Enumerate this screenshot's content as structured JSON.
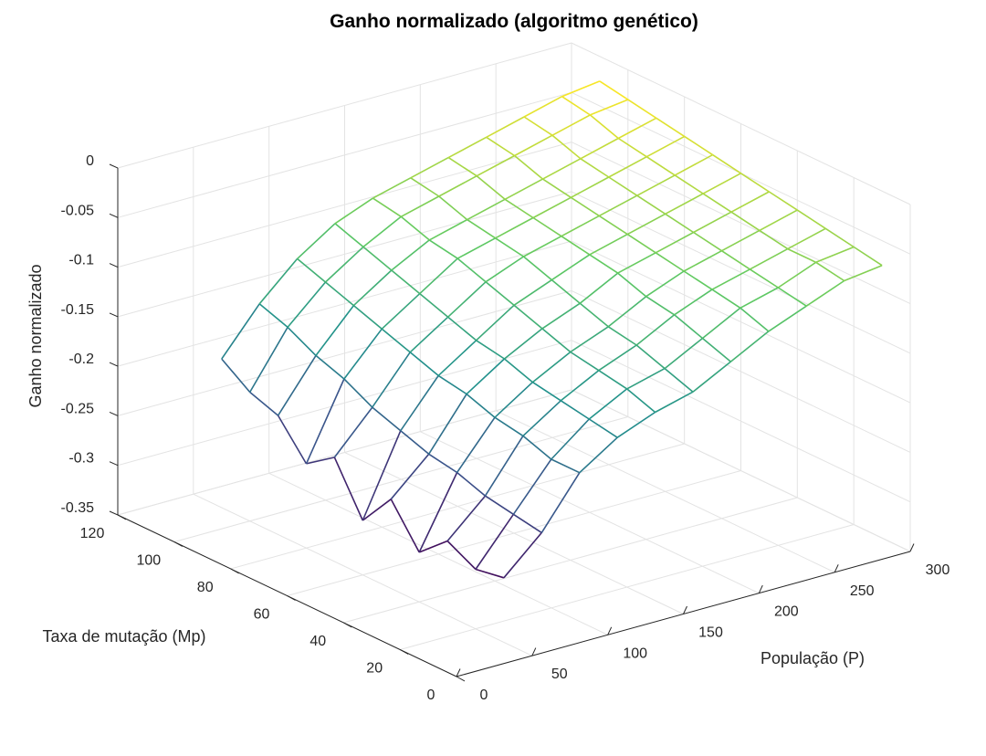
{
  "chart_data": {
    "type": "surface-mesh",
    "title": "Ganho normalizado (algoritmo genético)",
    "xlabel": "População (P)",
    "ylabel": "Taxa de mutação (Mp)",
    "zlabel": "Ganho normalizado",
    "xlim": [
      0,
      300
    ],
    "ylim": [
      0,
      120
    ],
    "zlim": [
      -0.35,
      0
    ],
    "xticks": [
      0,
      50,
      100,
      150,
      200,
      250,
      300
    ],
    "yticks": [
      0,
      20,
      40,
      60,
      80,
      100,
      120
    ],
    "zticks": [
      0,
      -0.05,
      -0.1,
      -0.15,
      -0.2,
      -0.25,
      -0.3,
      -0.35
    ],
    "xtick_labels": [
      "0",
      "50",
      "100",
      "150",
      "200",
      "250",
      "300"
    ],
    "ytick_labels": [
      "0",
      "20",
      "40",
      "60",
      "80",
      "100",
      "120"
    ],
    "ztick_labels": [
      "0",
      "-0.05",
      "-0.1",
      "-0.15",
      "-0.2",
      "-0.25",
      "-0.3",
      "-0.35"
    ],
    "grid": true,
    "colormap": [
      "#440154",
      "#3b528b",
      "#21918c",
      "#5ec962",
      "#fde725"
    ],
    "x": [
      50,
      75,
      100,
      125,
      150,
      175,
      200,
      225,
      250,
      275,
      300
    ],
    "y": [
      10,
      20,
      30,
      40,
      50,
      60,
      70,
      80,
      90,
      100,
      110
    ],
    "z": [
      [
        -0.285,
        -0.25,
        -0.2,
        -0.175,
        -0.16,
        -0.15,
        -0.13,
        -0.11,
        -0.095,
        -0.08,
        -0.075
      ],
      [
        -0.29,
        -0.245,
        -0.2,
        -0.17,
        -0.15,
        -0.14,
        -0.12,
        -0.1,
        -0.09,
        -0.075,
        -0.07
      ],
      [
        -0.275,
        -0.24,
        -0.19,
        -0.165,
        -0.145,
        -0.13,
        -0.11,
        -0.095,
        -0.085,
        -0.075,
        -0.065
      ],
      [
        -0.3,
        -0.23,
        -0.185,
        -0.16,
        -0.14,
        -0.125,
        -0.105,
        -0.09,
        -0.08,
        -0.07,
        -0.06
      ],
      [
        -0.26,
        -0.225,
        -0.175,
        -0.15,
        -0.13,
        -0.115,
        -0.095,
        -0.085,
        -0.075,
        -0.065,
        -0.055
      ],
      [
        -0.295,
        -0.215,
        -0.17,
        -0.145,
        -0.12,
        -0.105,
        -0.09,
        -0.08,
        -0.07,
        -0.06,
        -0.05
      ],
      [
        -0.245,
        -0.205,
        -0.16,
        -0.135,
        -0.11,
        -0.095,
        -0.085,
        -0.075,
        -0.065,
        -0.055,
        -0.045
      ],
      [
        -0.265,
        -0.19,
        -0.15,
        -0.125,
        -0.1,
        -0.09,
        -0.08,
        -0.07,
        -0.06,
        -0.05,
        -0.04
      ],
      [
        -0.23,
        -0.18,
        -0.14,
        -0.115,
        -0.095,
        -0.085,
        -0.075,
        -0.065,
        -0.055,
        -0.045,
        -0.035
      ],
      [
        -0.22,
        -0.165,
        -0.13,
        -0.105,
        -0.085,
        -0.075,
        -0.065,
        -0.055,
        -0.045,
        -0.035,
        -0.03
      ],
      [
        -0.2,
        -0.155,
        -0.12,
        -0.095,
        -0.08,
        -0.07,
        -0.06,
        -0.05,
        -0.04,
        -0.03,
        -0.025
      ]
    ]
  }
}
